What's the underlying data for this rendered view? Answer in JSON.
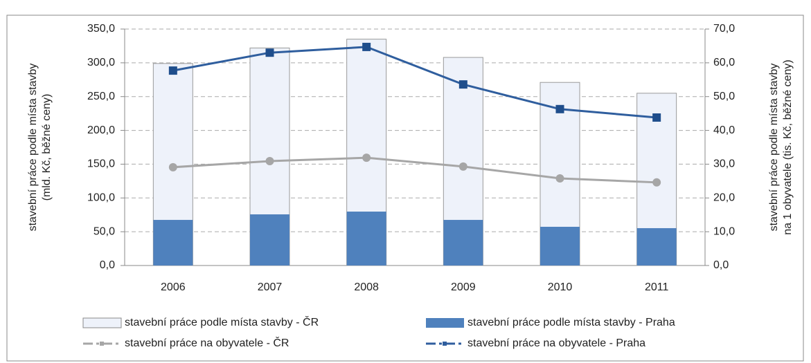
{
  "chart_data": {
    "type": "bar",
    "categories": [
      "2006",
      "2007",
      "2008",
      "2009",
      "2010",
      "2011"
    ],
    "y_label": [
      "stavební práce podle místa stavby",
      "(mld. Kč, běžné ceny)"
    ],
    "y2_label": [
      "stavební práce podle místa stavby",
      "na 1 obyvatele (tis. Kč, běžné ceny)"
    ],
    "ylim": [
      0,
      350
    ],
    "yticks": [
      {
        "value": 0,
        "label": "0,0"
      },
      {
        "value": 50,
        "label": "50,0"
      },
      {
        "value": 100,
        "label": "100,0"
      },
      {
        "value": 150,
        "label": "150,0"
      },
      {
        "value": 200,
        "label": "200,0"
      },
      {
        "value": 250,
        "label": "250,0"
      },
      {
        "value": 300,
        "label": "300,0"
      },
      {
        "value": 350,
        "label": "350,0"
      }
    ],
    "y2lim": [
      0,
      70
    ],
    "y2ticks": [
      {
        "value": 0,
        "label": "0,0"
      },
      {
        "value": 10,
        "label": "10,0"
      },
      {
        "value": 20,
        "label": "20,0"
      },
      {
        "value": 30,
        "label": "30,0"
      },
      {
        "value": 40,
        "label": "40,0"
      },
      {
        "value": 50,
        "label": "50,0"
      },
      {
        "value": 60,
        "label": "60,0"
      },
      {
        "value": 70,
        "label": "70,0"
      }
    ],
    "grid": true,
    "series": [
      {
        "name": "stavební práce podle místa stavby - ČR",
        "type": "bar",
        "color": "#eef2fa",
        "values": [
          299,
          322,
          335,
          308,
          271,
          255
        ]
      },
      {
        "name": "stavební práce podle místa stavby - Praha",
        "type": "bar",
        "color": "#4f81bd",
        "values": [
          67.5,
          75.7,
          79.8,
          67.5,
          57.3,
          55.3
        ]
      },
      {
        "name": "stavební práce na obyvatele - ČR",
        "type": "line",
        "axis": "y2",
        "color": "#a6a6a6",
        "values": [
          29.1,
          30.9,
          31.9,
          29.3,
          25.8,
          24.6
        ]
      },
      {
        "name": "stavební práce na obyvatele - Praha",
        "type": "line",
        "axis": "y2",
        "color": "#2f5e9e",
        "values": [
          57.7,
          63.0,
          64.7,
          53.6,
          46.3,
          43.8
        ]
      }
    ]
  }
}
